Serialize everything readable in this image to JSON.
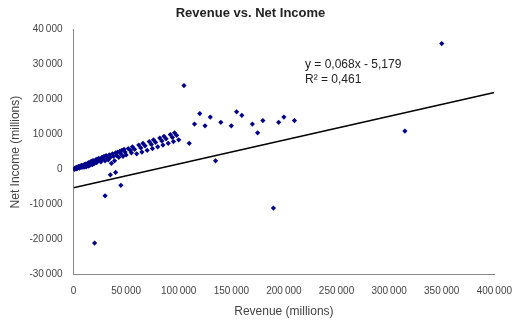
{
  "chart_data": {
    "type": "scatter",
    "title": "Revenue vs. Net Income",
    "xlabel": "Revenue (millions)",
    "ylabel": "Net Income (millions)",
    "annotations": [
      "y = 0,068x - 5,179",
      "R² = 0,461"
    ],
    "xlim": [
      0,
      400000
    ],
    "ylim": [
      -30000,
      40000
    ],
    "xticks": [
      0,
      {
        "value": 50000,
        "label": "50 000"
      },
      {
        "value": 100000,
        "label": "100 000"
      },
      {
        "value": 150000,
        "label": "150 000"
      },
      {
        "value": 200000,
        "label": "200 000"
      },
      {
        "value": 250000,
        "label": "250 000"
      },
      {
        "value": 300000,
        "label": "300 000"
      },
      {
        "value": 350000,
        "label": "350 000"
      },
      {
        "value": 400000,
        "label": "400 000"
      }
    ],
    "yticks": [
      {
        "value": -30000,
        "label": "-30 000"
      },
      {
        "value": -20000,
        "label": "-20 000"
      },
      {
        "value": -10000,
        "label": "-10 000"
      },
      0,
      {
        "value": 10000,
        "label": "10 000"
      },
      {
        "value": 20000,
        "label": "20 000"
      },
      {
        "value": 30000,
        "label": "30 000"
      },
      {
        "value": 40000,
        "label": "40 000"
      }
    ],
    "grid": false,
    "series": [
      {
        "type": "scatter",
        "color": "#00008B",
        "marker": "diamond",
        "x": [
          500,
          800,
          1000,
          1200,
          1500,
          2000,
          2200,
          2500,
          3000,
          3200,
          3500,
          4000,
          4500,
          5000,
          5200,
          5500,
          6000,
          6500,
          7000,
          7500,
          8000,
          8500,
          9000,
          9500,
          10000,
          10500,
          11000,
          11500,
          12000,
          12500,
          13000,
          13500,
          14000,
          14500,
          15000,
          15500,
          16000,
          16500,
          17000,
          17500,
          18000,
          18500,
          19000,
          19500,
          20000,
          21000,
          22000,
          22500,
          23000,
          24000,
          25000,
          26000,
          27000,
          28000,
          29000,
          30000,
          31000,
          32000,
          33000,
          34000,
          35000,
          36000,
          37000,
          38000,
          39000,
          40000,
          41000,
          42000,
          43000,
          44000,
          45000,
          46000,
          47000,
          48000,
          49000,
          50000,
          52000,
          54000,
          55000,
          56000,
          58000,
          60000,
          62000,
          64000,
          65000,
          66000,
          68000,
          70000,
          72000,
          74000,
          75000,
          76000,
          78000,
          80000,
          82000,
          84000,
          85000,
          86000,
          88000,
          90000,
          92000,
          94000,
          95000,
          96000,
          98000,
          100000,
          105000,
          110000,
          115000,
          120000,
          125000,
          130000,
          135000,
          140000,
          150000,
          155000,
          160000,
          170000,
          175000,
          180000,
          190000,
          195000,
          200000,
          210000,
          30000,
          35000,
          40000,
          45000,
          20000,
          315000,
          350000
        ],
        "values": [
          200,
          100,
          300,
          150,
          400,
          300,
          500,
          400,
          600,
          200,
          700,
          500,
          800,
          600,
          900,
          400,
          700,
          1000,
          800,
          1200,
          600,
          1100,
          900,
          1300,
          700,
          1400,
          1000,
          1600,
          800,
          1500,
          1200,
          1800,
          1000,
          2000,
          1500,
          1200,
          2200,
          1600,
          1800,
          2400,
          1400,
          2600,
          2000,
          2200,
          1800,
          2800,
          2000,
          3000,
          2500,
          3200,
          2800,
          2200,
          3500,
          3000,
          3800,
          2500,
          4000,
          3200,
          2800,
          4200,
          3500,
          1800,
          4500,
          3800,
          2500,
          4800,
          4000,
          5000,
          3500,
          5200,
          4500,
          5500,
          3800,
          5800,
          5000,
          4200,
          6000,
          5500,
          4800,
          6500,
          5800,
          4500,
          7000,
          6200,
          5000,
          7500,
          6800,
          5500,
          8000,
          7200,
          6000,
          8500,
          7800,
          6500,
          9000,
          8200,
          7000,
          9500,
          8800,
          7500,
          10000,
          9200,
          8000,
          10500,
          9800,
          8500,
          24000,
          7500,
          13000,
          16000,
          12500,
          15000,
          2500,
          13500,
          12500,
          16500,
          15500,
          13000,
          10500,
          14000,
          -11000,
          13500,
          15000,
          14000,
          -7500,
          -1500,
          -800,
          -4500,
          -21000,
          11000,
          36000
        ]
      },
      {
        "type": "line",
        "color": "#000000",
        "x": [
          0,
          400000
        ],
        "values": [
          -5179,
          22021
        ]
      }
    ]
  }
}
